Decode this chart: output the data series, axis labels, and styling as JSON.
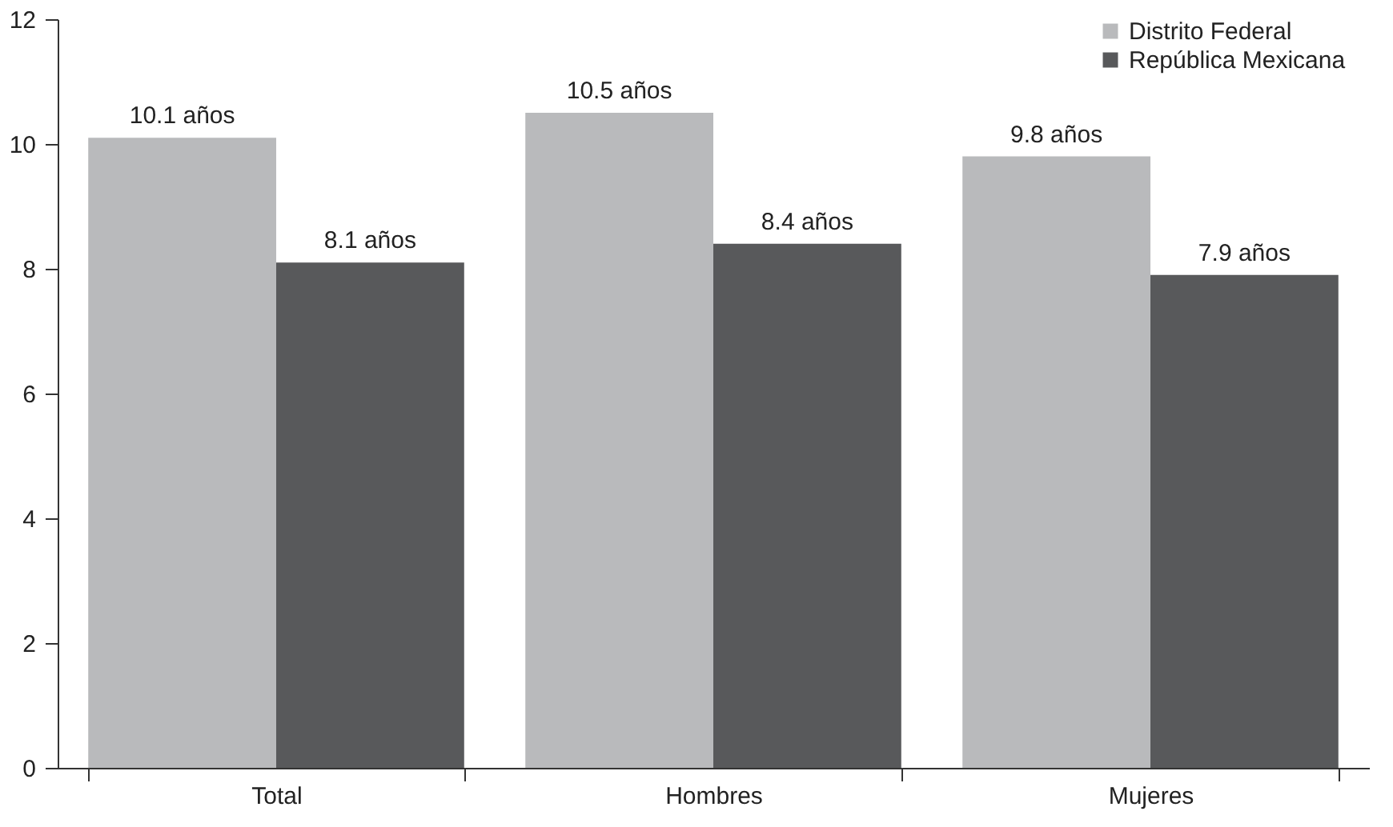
{
  "chart_data": {
    "type": "bar",
    "categories": [
      "Total",
      "Hombres",
      "Mujeres"
    ],
    "series": [
      {
        "name": "Distrito Federal",
        "color": "#b9babc",
        "values": [
          10.1,
          10.5,
          9.8
        ],
        "value_labels": [
          "10.1 años",
          "10.5 años",
          "9.8 años"
        ]
      },
      {
        "name": "República Mexicana",
        "color": "#58595b",
        "values": [
          8.1,
          8.4,
          7.9
        ],
        "value_labels": [
          "8.1 años",
          "8.4 años",
          "7.9 años"
        ]
      }
    ],
    "ylim": [
      0,
      12
    ],
    "yticks": [
      0,
      2,
      4,
      6,
      8,
      10,
      12
    ],
    "grid": false,
    "legend": "top right"
  }
}
